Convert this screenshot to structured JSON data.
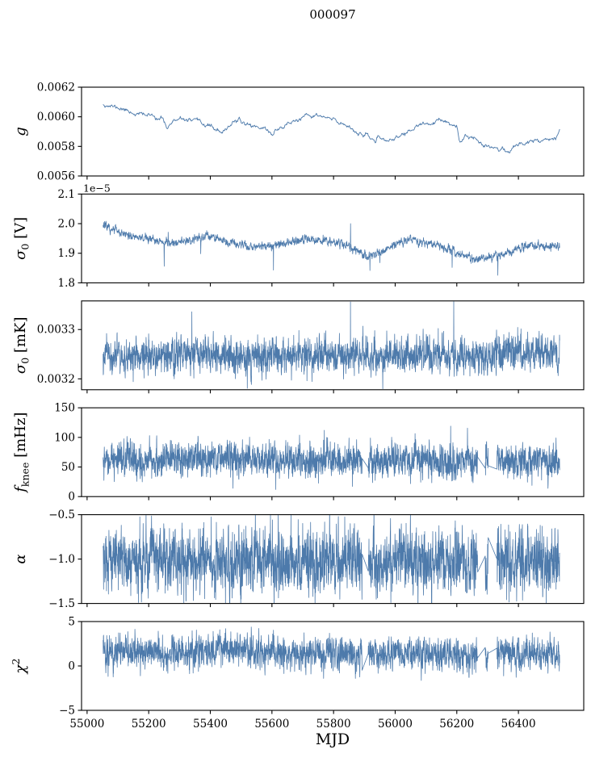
{
  "chart_data": {
    "type": "line",
    "title": "000097",
    "xlabel": "MJD",
    "line_color": "#4d7aab",
    "axis_color": "#000000",
    "background_color": "#ffffff",
    "x_lim": [
      54982,
      56612
    ],
    "x_data_range": [
      55052,
      56534
    ],
    "x_ticks": [
      {
        "v": 55000,
        "l": "55000"
      },
      {
        "v": 55200,
        "l": "55200"
      },
      {
        "v": 55400,
        "l": "55400"
      },
      {
        "v": 55600,
        "l": "55600"
      },
      {
        "v": 55800,
        "l": "55800"
      },
      {
        "v": 56000,
        "l": "56000"
      },
      {
        "v": 56200,
        "l": "56200"
      },
      {
        "v": 56400,
        "l": "56400"
      }
    ],
    "gaps": [
      [
        55893,
        55912
      ],
      [
        56268,
        56292
      ],
      [
        56302,
        56330
      ]
    ],
    "subplots": [
      {
        "id": "gain",
        "ylabel": "*g*",
        "ylabel_text": "g",
        "ylim": [
          0.0056,
          0.0062
        ],
        "yticks": [
          {
            "v": 0.0056,
            "l": "0.0056"
          },
          {
            "v": 0.0058,
            "l": "0.0058"
          },
          {
            "v": 0.006,
            "l": "0.0060"
          },
          {
            "v": 0.0062,
            "l": "0.0062"
          }
        ],
        "offset_text": "",
        "trend": [
          [
            55052,
            0.00609
          ],
          [
            55080,
            0.00607
          ],
          [
            55120,
            0.00605
          ],
          [
            55160,
            0.00602
          ],
          [
            55200,
            0.00601
          ],
          [
            55240,
            0.00599
          ],
          [
            55260,
            0.00593
          ],
          [
            55280,
            0.00597
          ],
          [
            55320,
            0.00598
          ],
          [
            55360,
            0.00596
          ],
          [
            55400,
            0.00594
          ],
          [
            55440,
            0.00588
          ],
          [
            55460,
            0.00594
          ],
          [
            55480,
            0.00598
          ],
          [
            55500,
            0.00596
          ],
          [
            55540,
            0.00594
          ],
          [
            55580,
            0.00592
          ],
          [
            55600,
            0.00588
          ],
          [
            55620,
            0.00592
          ],
          [
            55660,
            0.00596
          ],
          [
            55700,
            0.00599
          ],
          [
            55740,
            0.00601
          ],
          [
            55780,
            0.00599
          ],
          [
            55820,
            0.00596
          ],
          [
            55850,
            0.00594
          ],
          [
            55880,
            0.00589
          ],
          [
            55920,
            0.00585
          ],
          [
            55960,
            0.00584
          ],
          [
            56000,
            0.00585
          ],
          [
            56040,
            0.0059
          ],
          [
            56080,
            0.00594
          ],
          [
            56120,
            0.00596
          ],
          [
            56160,
            0.00597
          ],
          [
            56200,
            0.00592
          ],
          [
            56210,
            0.00581
          ],
          [
            56230,
            0.00588
          ],
          [
            56260,
            0.00585
          ],
          [
            56300,
            0.00581
          ],
          [
            56340,
            0.00578
          ],
          [
            56370,
            0.00577
          ],
          [
            56400,
            0.00581
          ],
          [
            56440,
            0.00584
          ],
          [
            56480,
            0.00585
          ],
          [
            56520,
            0.00586
          ],
          [
            56534,
            0.00592
          ]
        ],
        "spikes": [],
        "gen": {
          "seed": 11,
          "n": 900,
          "smooth": 0.78,
          "sigma": 5.5e-06,
          "tail_p": 0,
          "tail_mag": 0,
          "tail_up_frac": 0.5,
          "gaps": false,
          "stroke": 0.9
        }
      },
      {
        "id": "sigma0-volt",
        "ylabel": "*σ*_{0} [V]",
        "ylabel_text": "σ0 [V]",
        "ylim": [
          1.8e-05,
          2.1e-05
        ],
        "yticks": [
          {
            "v": 1.8e-05,
            "l": "1.8"
          },
          {
            "v": 1.9e-05,
            "l": "1.9"
          },
          {
            "v": 2e-05,
            "l": "2.0"
          },
          {
            "v": 2.1e-05,
            "l": "2.1"
          }
        ],
        "offset_text": "1e−5",
        "trend": [
          [
            55052,
            1.995e-05
          ],
          [
            55080,
            1.985e-05
          ],
          [
            55120,
            1.965e-05
          ],
          [
            55160,
            1.955e-05
          ],
          [
            55200,
            1.95e-05
          ],
          [
            55250,
            1.935e-05
          ],
          [
            55300,
            1.94e-05
          ],
          [
            55350,
            1.945e-05
          ],
          [
            55390,
            1.96e-05
          ],
          [
            55420,
            1.95e-05
          ],
          [
            55460,
            1.935e-05
          ],
          [
            55500,
            1.93e-05
          ],
          [
            55550,
            1.92e-05
          ],
          [
            55600,
            1.925e-05
          ],
          [
            55650,
            1.935e-05
          ],
          [
            55700,
            1.95e-05
          ],
          [
            55750,
            1.94e-05
          ],
          [
            55800,
            1.94e-05
          ],
          [
            55850,
            1.925e-05
          ],
          [
            55880,
            1.91e-05
          ],
          [
            55910,
            1.89e-05
          ],
          [
            55950,
            1.905e-05
          ],
          [
            56000,
            1.93e-05
          ],
          [
            56050,
            1.95e-05
          ],
          [
            56100,
            1.935e-05
          ],
          [
            56150,
            1.925e-05
          ],
          [
            56200,
            1.9e-05
          ],
          [
            56250,
            1.88e-05
          ],
          [
            56300,
            1.885e-05
          ],
          [
            56350,
            1.895e-05
          ],
          [
            56400,
            1.915e-05
          ],
          [
            56450,
            1.925e-05
          ],
          [
            56500,
            1.92e-05
          ],
          [
            56534,
            1.925e-05
          ]
        ],
        "spikes": [
          {
            "x": 55855,
            "y": 2e-05
          },
          {
            "x": 55250,
            "y": 1.856e-05
          },
          {
            "x": 55605,
            "y": 1.843e-05
          },
          {
            "x": 55950,
            "y": 1.868e-05
          },
          {
            "x": 56185,
            "y": 1.852e-05
          }
        ],
        "gen": {
          "seed": 22,
          "n": 2400,
          "smooth": 0.55,
          "sigma": 6e-08,
          "tail_p": 0.004,
          "tail_mag": 4e-07,
          "tail_up_frac": 0.1,
          "gaps": false,
          "stroke": 0.8
        }
      },
      {
        "id": "sigma0-mk",
        "ylabel": "*σ*_{0} [mK]",
        "ylabel_text": "σ0 [mK]",
        "ylim": [
          0.003178,
          0.003358
        ],
        "yticks": [
          {
            "v": 0.0032,
            "l": "0.0032"
          },
          {
            "v": 0.0033,
            "l": "0.0033"
          }
        ],
        "offset_text": "",
        "trend": [
          [
            55052,
            0.003252
          ],
          [
            55150,
            0.003246
          ],
          [
            55250,
            0.003244
          ],
          [
            55350,
            0.003246
          ],
          [
            55450,
            0.003248
          ],
          [
            55550,
            0.003242
          ],
          [
            55650,
            0.003248
          ],
          [
            55750,
            0.00325
          ],
          [
            55850,
            0.003248
          ],
          [
            55950,
            0.003246
          ],
          [
            56050,
            0.00325
          ],
          [
            56150,
            0.003248
          ],
          [
            56250,
            0.003246
          ],
          [
            56350,
            0.003252
          ],
          [
            56450,
            0.003254
          ],
          [
            56534,
            0.00325
          ]
        ],
        "spikes": [
          {
            "x": 55855,
            "y": 0.003356
          },
          {
            "x": 56190,
            "y": 0.003357
          },
          {
            "x": 55340,
            "y": 0.003336
          },
          {
            "x": 55960,
            "y": 0.00318
          },
          {
            "x": 55520,
            "y": 0.003181
          }
        ],
        "gen": {
          "seed": 33,
          "n": 3000,
          "smooth": 0.45,
          "sigma": 1.6e-05,
          "tail_p": 0.008,
          "tail_mag": 4e-05,
          "tail_up_frac": 0.5,
          "gaps": false,
          "stroke": 0.8
        }
      },
      {
        "id": "fknee",
        "ylabel": "*f*_{knee} [mHz]",
        "ylabel_text": "fknee [mHz]",
        "ylim": [
          0,
          150
        ],
        "yticks": [
          {
            "v": 0,
            "l": "0"
          },
          {
            "v": 50,
            "l": "50"
          },
          {
            "v": 100,
            "l": "100"
          },
          {
            "v": 150,
            "l": "150"
          }
        ],
        "offset_text": "",
        "trend": [
          [
            55052,
            62
          ],
          [
            55300,
            63
          ],
          [
            55600,
            62
          ],
          [
            55900,
            60
          ],
          [
            56200,
            62
          ],
          [
            56534,
            62
          ]
        ],
        "spikes": [
          {
            "x": 55770,
            "y": 112
          }
        ],
        "gen": {
          "seed": 44,
          "n": 3000,
          "smooth": 0.35,
          "sigma": 13,
          "tail_p": 0.01,
          "tail_mag": 20,
          "tail_up_frac": 0.9,
          "gaps": true,
          "stroke": 0.8
        }
      },
      {
        "id": "alpha",
        "ylabel": "*α*",
        "ylabel_text": "α",
        "ylim": [
          -1.5,
          -0.5
        ],
        "yticks": [
          {
            "v": -1.5,
            "l": "−1.5"
          },
          {
            "v": -1.0,
            "l": "−1.0"
          },
          {
            "v": -0.5,
            "l": "−0.5"
          }
        ],
        "offset_text": "",
        "trend": [
          [
            55052,
            -1.02
          ],
          [
            56534,
            -1.02
          ]
        ],
        "spikes": [
          {
            "x": 55595,
            "y": -0.505
          }
        ],
        "gen": {
          "seed": 55,
          "n": 3000,
          "smooth": 0.35,
          "sigma": 0.165,
          "tail_p": 0.01,
          "tail_mag": 0.22,
          "tail_up_frac": 0.5,
          "gaps": true,
          "stroke": 0.8
        }
      },
      {
        "id": "chi2",
        "ylabel": "*χ*^{2}",
        "ylabel_text": "χ²",
        "ylim": [
          -5,
          5
        ],
        "yticks": [
          {
            "v": -5,
            "l": "−5"
          },
          {
            "v": 0,
            "l": "0"
          },
          {
            "v": 5,
            "l": "5"
          }
        ],
        "offset_text": "",
        "trend": [
          [
            55052,
            1.3
          ],
          [
            55150,
            1.6
          ],
          [
            55250,
            1.4
          ],
          [
            55350,
            1.6
          ],
          [
            55450,
            1.8
          ],
          [
            55550,
            1.4
          ],
          [
            55650,
            1.5
          ],
          [
            55750,
            1.4
          ],
          [
            55850,
            1.3
          ],
          [
            55950,
            1.4
          ],
          [
            56050,
            1.5
          ],
          [
            56150,
            1.3
          ],
          [
            56250,
            1.1
          ],
          [
            56350,
            1.4
          ],
          [
            56450,
            1.5
          ],
          [
            56534,
            1.4
          ]
        ],
        "spikes": [
          {
            "x": 55450,
            "y": 4.2
          }
        ],
        "gen": {
          "seed": 66,
          "n": 3000,
          "smooth": 0.4,
          "sigma": 0.82,
          "tail_p": 0.006,
          "tail_mag": 1.2,
          "tail_up_frac": 0.3,
          "gaps": true,
          "stroke": 0.8
        }
      }
    ]
  }
}
